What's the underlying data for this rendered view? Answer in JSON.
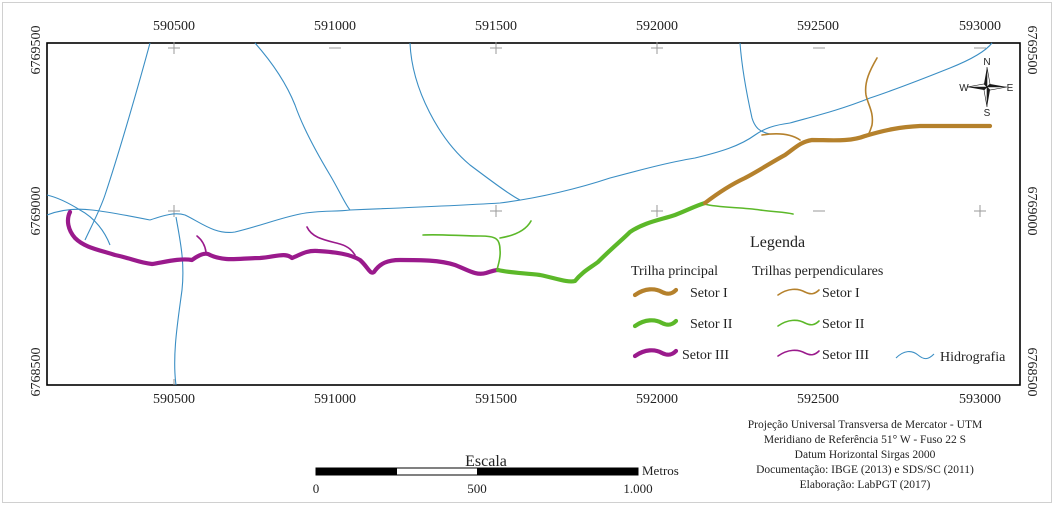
{
  "map": {
    "x_ticks": [
      "590500",
      "591000",
      "591500",
      "592000",
      "592500",
      "593000"
    ],
    "y_ticks": [
      "6769500",
      "6769000",
      "6768500"
    ],
    "colors": {
      "setor_i": "#b5812c",
      "setor_ii": "#5cb829",
      "setor_iii": "#9a1a8c",
      "hidrografia": "#3a8ec4",
      "frame": "#000000",
      "grid_cross": "#9a9a9a"
    }
  },
  "legend": {
    "title": "Legenda",
    "principal_header": "Trilha principal",
    "perpendicular_header": "Trilhas perpendiculares",
    "items": [
      "Setor I",
      "Setor II",
      "Setor III"
    ],
    "hidrografia": "Hidrografia"
  },
  "north_arrow": {
    "n": "N",
    "s": "S",
    "e": "E",
    "w": "W"
  },
  "scale": {
    "title": "Escala",
    "unit": "Metros",
    "labels": [
      "0",
      "500",
      "1.000"
    ]
  },
  "credits": [
    "Projeção Universal Transversa de Mercator - UTM",
    "Meridiano de Referência 51° W - Fuso 22 S",
    "Datum Horizontal Sirgas 2000",
    "Documentação: IBGE (2013) e SDS/SC (2011)",
    "Elaboração: LabPGT (2017)"
  ]
}
